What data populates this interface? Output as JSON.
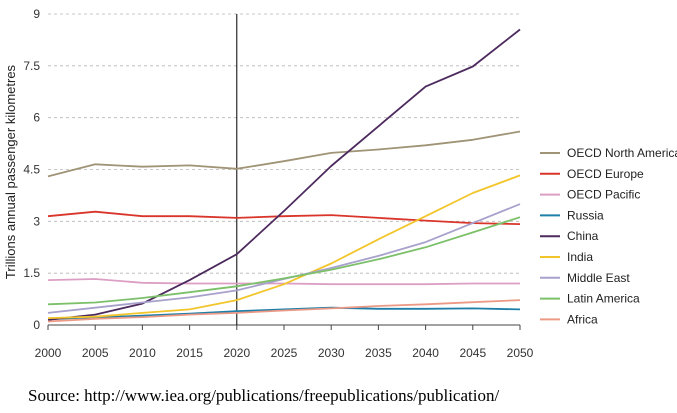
{
  "chart_data": {
    "type": "line",
    "title": "",
    "xlabel": "",
    "ylabel": "Trillions annual passenger kilometres",
    "x": [
      2000,
      2005,
      2010,
      2015,
      2020,
      2025,
      2030,
      2035,
      2040,
      2045,
      2050
    ],
    "x_tick_labels": [
      "2000",
      "2005",
      "2010",
      "2015",
      "2020",
      "2025",
      "2030",
      "2035",
      "2040",
      "2045",
      "2050"
    ],
    "y_tick_values": [
      0,
      1.5,
      3,
      4.5,
      6,
      7.5,
      9
    ],
    "y_tick_labels": [
      "0",
      "1.5",
      "3",
      "4.5",
      "6",
      "7.5",
      "9"
    ],
    "xlim": [
      2000,
      2050
    ],
    "ylim": [
      0,
      9
    ],
    "grid": "horizontal dashed",
    "reference_line_x": 2020,
    "legend_position": "right",
    "series": [
      {
        "name": "OECD North America",
        "color": "#a09476",
        "values": [
          4.3,
          4.65,
          4.58,
          4.62,
          4.52,
          4.74,
          4.98,
          5.08,
          5.2,
          5.36,
          5.6
        ]
      },
      {
        "name": "OECD Europe",
        "color": "#d9352a",
        "values": [
          3.15,
          3.28,
          3.15,
          3.15,
          3.1,
          3.15,
          3.18,
          3.1,
          3.02,
          2.95,
          2.92
        ]
      },
      {
        "name": "OECD Pacific",
        "color": "#dc9fc4",
        "values": [
          1.3,
          1.33,
          1.22,
          1.2,
          1.2,
          1.2,
          1.18,
          1.18,
          1.18,
          1.2,
          1.2
        ]
      },
      {
        "name": "Russia",
        "color": "#1f7fa8",
        "values": [
          0.17,
          0.22,
          0.27,
          0.33,
          0.4,
          0.45,
          0.5,
          0.47,
          0.47,
          0.48,
          0.45
        ]
      },
      {
        "name": "China",
        "color": "#4d2a5e",
        "values": [
          0.15,
          0.3,
          0.62,
          1.3,
          2.05,
          3.3,
          4.6,
          5.75,
          6.9,
          7.48,
          8.55
        ]
      },
      {
        "name": "India",
        "color": "#f2c52a",
        "values": [
          0.2,
          0.24,
          0.35,
          0.45,
          0.72,
          1.18,
          1.78,
          2.48,
          3.15,
          3.82,
          4.33
        ]
      },
      {
        "name": "Middle East",
        "color": "#a7a1cc",
        "values": [
          0.35,
          0.5,
          0.65,
          0.8,
          1.0,
          1.33,
          1.65,
          2.0,
          2.4,
          2.95,
          3.5
        ]
      },
      {
        "name": "Latin America",
        "color": "#7cc06a",
        "values": [
          0.6,
          0.65,
          0.78,
          0.95,
          1.12,
          1.35,
          1.6,
          1.9,
          2.25,
          2.68,
          3.12
        ]
      },
      {
        "name": "Africa",
        "color": "#ec9a86",
        "values": [
          0.1,
          0.18,
          0.23,
          0.3,
          0.35,
          0.42,
          0.48,
          0.55,
          0.6,
          0.66,
          0.72
        ]
      }
    ]
  },
  "source_text": "Source: http://www.iea.org/publications/freepublications/publication/"
}
